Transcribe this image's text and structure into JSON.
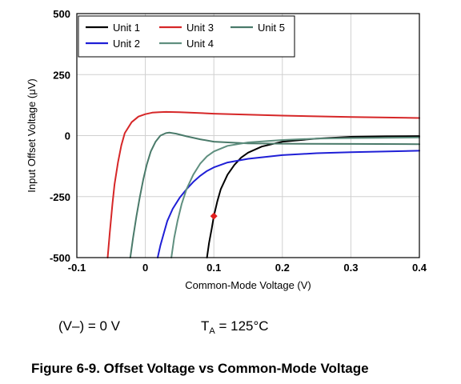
{
  "chart_data": {
    "type": "line",
    "xlabel": "Common-Mode Voltage (V)",
    "ylabel": "Input Offset Voltage (μV)",
    "xlim": [
      -0.1,
      0.4
    ],
    "ylim": [
      -500,
      500
    ],
    "xticks": [
      "-0.1",
      "0",
      "0.1",
      "0.2",
      "0.3",
      "0.4"
    ],
    "yticks": [
      "500",
      "250",
      "0",
      "-250",
      "-500"
    ],
    "grid": true,
    "legend_position": "top-left",
    "legend_order": [
      "Unit 1",
      "Unit 3",
      "Unit 5",
      "Unit 2",
      "Unit 4"
    ],
    "series": [
      {
        "name": "Unit 1",
        "color": "#000000",
        "x": [
          0.09,
          0.093,
          0.097,
          0.1,
          0.105,
          0.11,
          0.12,
          0.13,
          0.14,
          0.15,
          0.17,
          0.2,
          0.25,
          0.3,
          0.35,
          0.4
        ],
        "y": [
          -500,
          -440,
          -380,
          -330,
          -270,
          -220,
          -160,
          -120,
          -90,
          -70,
          -45,
          -25,
          -12,
          -5,
          -3,
          -2
        ]
      },
      {
        "name": "Unit 3",
        "color": "#d62728",
        "x": [
          -0.055,
          -0.052,
          -0.048,
          -0.045,
          -0.04,
          -0.035,
          -0.03,
          -0.02,
          -0.01,
          0.0,
          0.01,
          0.02,
          0.03,
          0.05,
          0.1,
          0.2,
          0.3,
          0.4
        ],
        "y": [
          -500,
          -400,
          -280,
          -200,
          -110,
          -40,
          10,
          55,
          78,
          88,
          94,
          96,
          97,
          96,
          90,
          82,
          76,
          72
        ]
      },
      {
        "name": "Unit 5",
        "color": "#4a7a6a",
        "x": [
          -0.022,
          -0.018,
          -0.013,
          -0.008,
          -0.003,
          0.002,
          0.008,
          0.015,
          0.022,
          0.03,
          0.035,
          0.045,
          0.06,
          0.08,
          0.1,
          0.15,
          0.2,
          0.3,
          0.4
        ],
        "y": [
          -500,
          -420,
          -330,
          -250,
          -180,
          -120,
          -65,
          -25,
          0,
          10,
          12,
          8,
          -3,
          -15,
          -25,
          -32,
          -33,
          -34,
          -35
        ]
      },
      {
        "name": "Unit 2",
        "color": "#1f1fd6",
        "x": [
          0.018,
          0.022,
          0.027,
          0.032,
          0.04,
          0.05,
          0.06,
          0.07,
          0.08,
          0.09,
          0.1,
          0.12,
          0.15,
          0.2,
          0.25,
          0.3,
          0.4
        ],
        "y": [
          -500,
          -450,
          -400,
          -350,
          -300,
          -255,
          -220,
          -190,
          -165,
          -145,
          -130,
          -110,
          -95,
          -80,
          -72,
          -68,
          -62
        ]
      },
      {
        "name": "Unit 4",
        "color": "#5f8f7f",
        "x": [
          0.038,
          0.042,
          0.047,
          0.053,
          0.06,
          0.07,
          0.08,
          0.09,
          0.1,
          0.12,
          0.15,
          0.2,
          0.25,
          0.3,
          0.4
        ],
        "y": [
          -500,
          -420,
          -350,
          -280,
          -220,
          -160,
          -115,
          -85,
          -65,
          -42,
          -28,
          -18,
          -12,
          -10,
          -8
        ]
      }
    ],
    "annotations": [
      {
        "kind": "marker",
        "color": "#e02020",
        "x": 0.1,
        "y": -330
      }
    ]
  },
  "conditions": {
    "supply": "(V–) = 0 V",
    "temp_prefix": "T",
    "temp_sub": "A",
    "temp_value": " = 125°C"
  },
  "caption": "Figure 6-9. Offset Voltage vs Common-Mode Voltage"
}
